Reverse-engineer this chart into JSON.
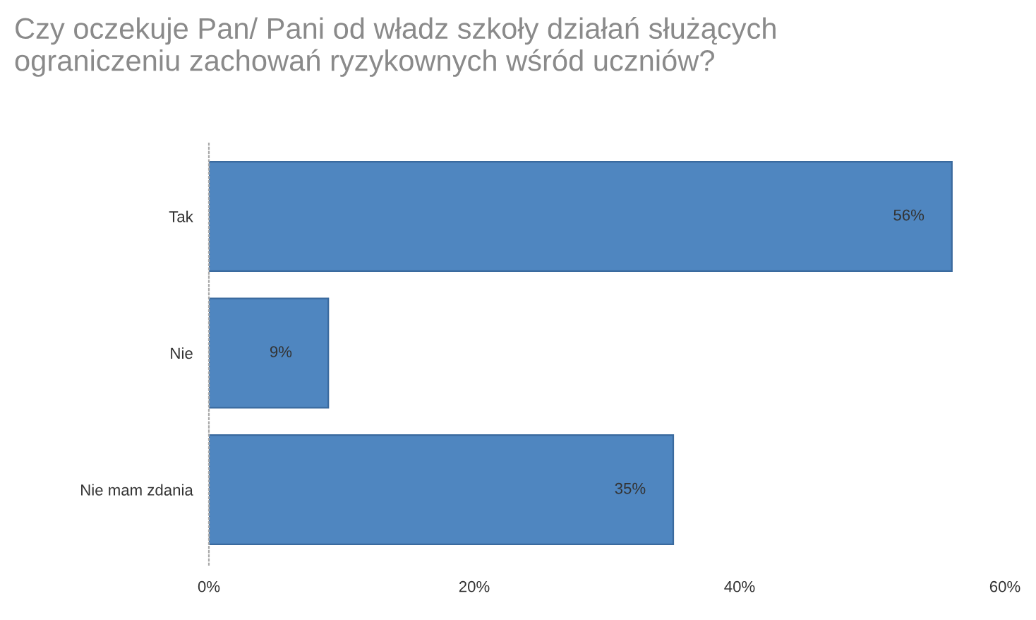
{
  "chart_data": {
    "type": "bar",
    "orientation": "horizontal",
    "title": "Czy oczekuje Pan/ Pani od władz szkoły działań służących\nograniczeniu zachowań ryzykownych wśród uczniów?",
    "categories": [
      "Tak",
      "Nie",
      "Nie mam zdania"
    ],
    "values": [
      56,
      9,
      35
    ],
    "value_labels": [
      "56%",
      "9%",
      "35%"
    ],
    "color": "#4f86c0",
    "xlim": [
      0,
      60
    ],
    "xticks": [
      {
        "value": 0,
        "label": "0%"
      },
      {
        "value": 20,
        "label": "20%"
      },
      {
        "value": 40,
        "label": "40%"
      },
      {
        "value": 60,
        "label": "60%"
      }
    ],
    "grid": false
  }
}
